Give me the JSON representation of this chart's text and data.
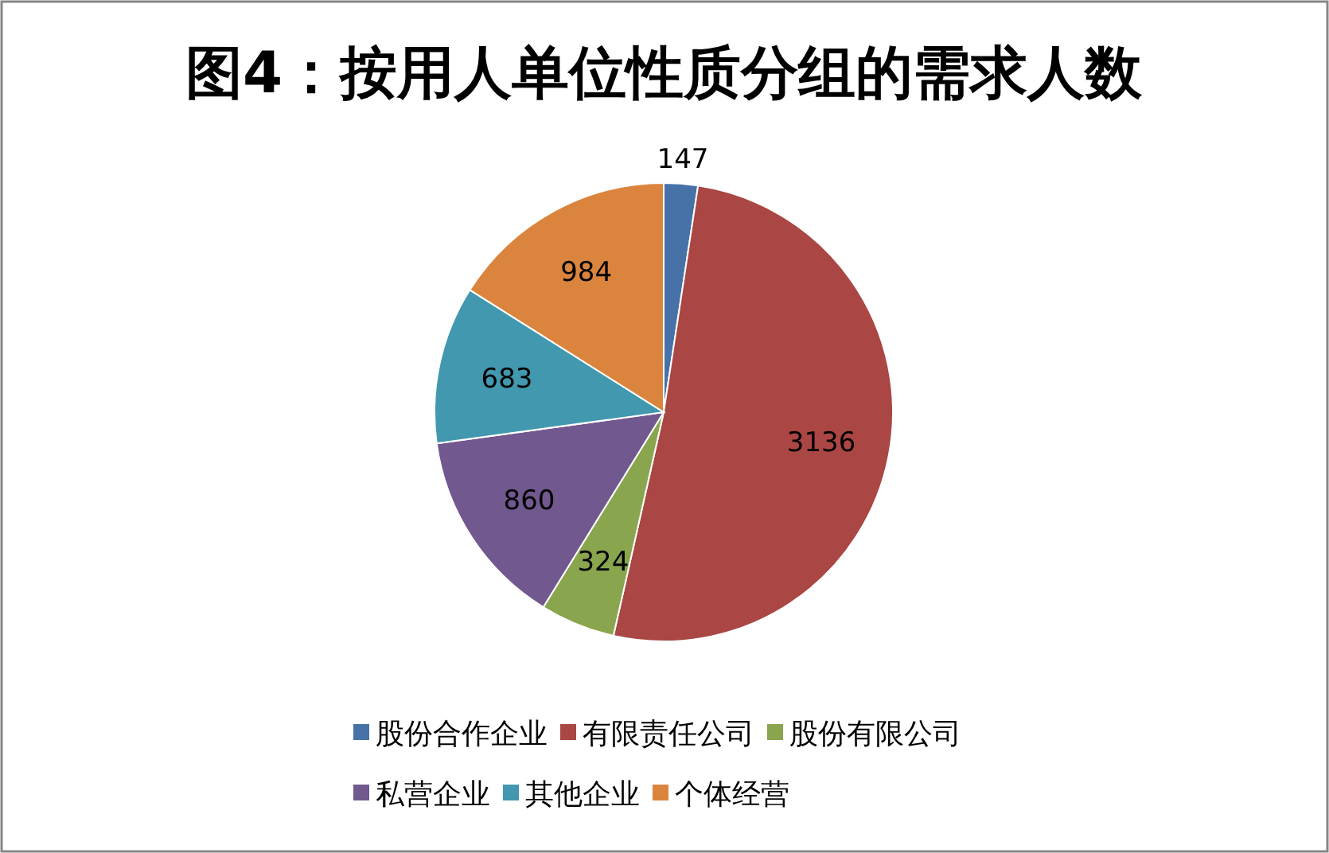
{
  "chart_data": {
    "type": "pie",
    "title": "图4：按用人单位性质分组的需求人数",
    "categories": [
      "股份合作企业",
      "有限责任公司",
      "股份有限公司",
      "私营企业",
      "其他企业",
      "个体经营"
    ],
    "values": [
      147,
      3136,
      324,
      860,
      683,
      984
    ],
    "colors": [
      "#4672a8",
      "#aa4643",
      "#89a54e",
      "#71588f",
      "#4198af",
      "#db843d"
    ],
    "data_labels": true,
    "legend": "bottom"
  }
}
